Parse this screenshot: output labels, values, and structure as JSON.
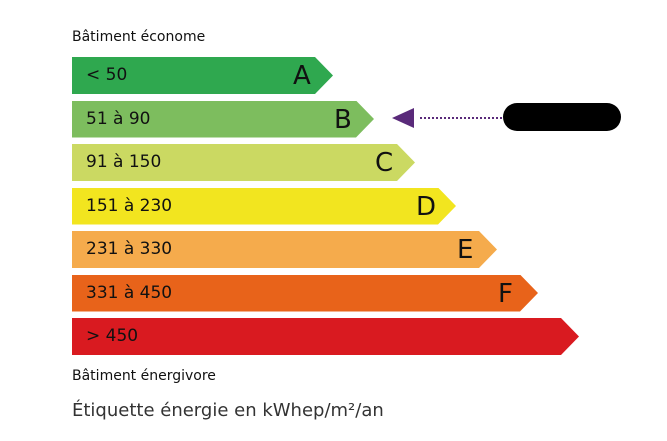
{
  "top_caption": "Bâtiment économe",
  "bottom_caption": "Bâtiment énergivore",
  "unit_caption": "Étiquette énergie en kWhep/m²/an",
  "classes": [
    {
      "range": "< 50",
      "letter": "A",
      "color": "#2fa84f"
    },
    {
      "range": "51 à 90",
      "letter": "B",
      "color": "#7dbd5e"
    },
    {
      "range": "91 à 150",
      "letter": "C",
      "color": "#cbd962"
    },
    {
      "range": "151 à 230",
      "letter": "D",
      "color": "#f2e51f"
    },
    {
      "range": "231 à 330",
      "letter": "E",
      "color": "#f5ab4c"
    },
    {
      "range": "331 à 450",
      "letter": "F",
      "color": "#e8631a"
    },
    {
      "range": "> 450",
      "letter": "",
      "color": "#d91a20"
    }
  ],
  "indicator": {
    "class": "B",
    "color": "#5a2a7a",
    "label_redacted": true
  }
}
